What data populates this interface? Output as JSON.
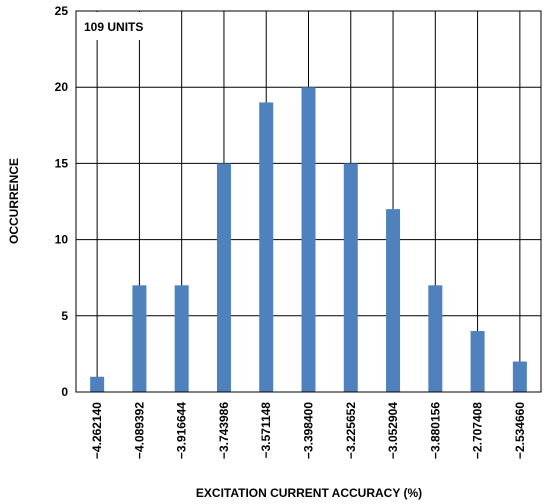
{
  "chart_data": {
    "type": "bar",
    "categories": [
      "−4.262140",
      "−4.089392",
      "−3.916644",
      "−3.743986",
      "−3.571148",
      "−3.398400",
      "−3.225652",
      "−3.052904",
      "−3.880156",
      "−2.707408",
      "−2.534660"
    ],
    "values": [
      1,
      7,
      7,
      15,
      19,
      20,
      15,
      12,
      7,
      4,
      2
    ],
    "xlabel": "EXCITATION CURRENT ACCURACY (%)",
    "ylabel": "OCCURRENCE",
    "ylim": [
      0,
      25
    ],
    "yticks": [
      0,
      5,
      10,
      15,
      20,
      25
    ],
    "annotation": "109 UNITS",
    "grid": true,
    "bar_color": "#4f81bd"
  }
}
